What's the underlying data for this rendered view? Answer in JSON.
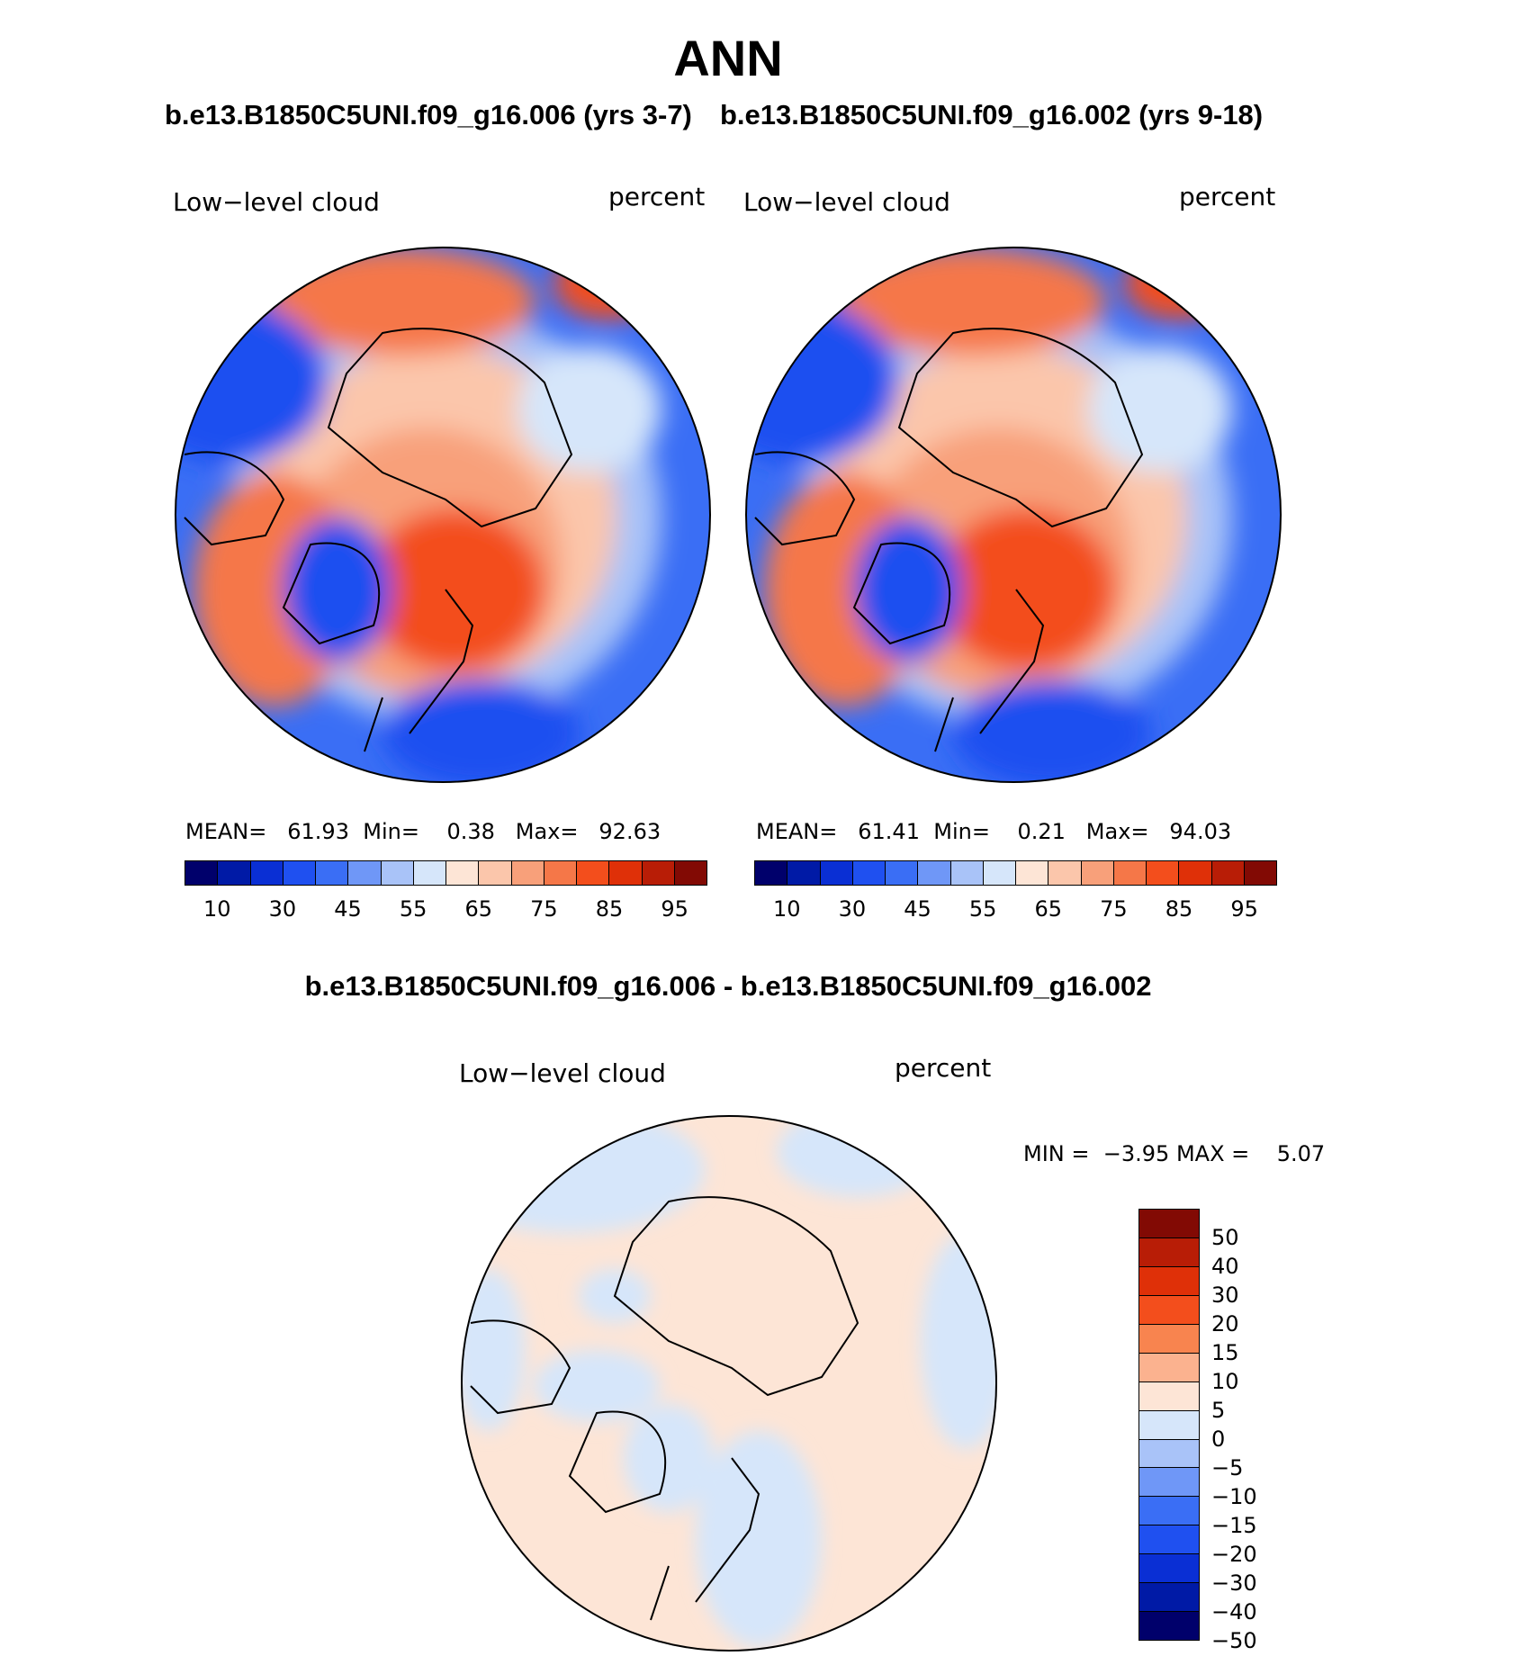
{
  "title": "ANN",
  "subtitle_left": "b.e13.B1850C5UNI.f09_g16.006 (yrs 3-7)",
  "subtitle_right": "b.e13.B1850C5UNI.f09_g16.002 (yrs 9-18)",
  "diff_title": "b.e13.B1850C5UNI.f09_g16.006 - b.e13.B1850C5UNI.f09_g16.002",
  "panels": [
    {
      "variable": "Low−level cloud",
      "units": "percent",
      "mean_label": "MEAN=",
      "mean": "61.93",
      "min_label": "Min=",
      "min": "0.38",
      "max_label": "Max=",
      "max": "92.63"
    },
    {
      "variable": "Low−level cloud",
      "units": "percent",
      "mean_label": "MEAN=",
      "mean": "61.41",
      "min_label": "Min=",
      "min": "0.21",
      "max_label": "Max=",
      "max": "94.03"
    }
  ],
  "diff_panel": {
    "variable": "Low−level cloud",
    "units": "percent",
    "min_label": "MIN =",
    "min": "−3.95",
    "max_label": "MAX =",
    "max": "5.07"
  },
  "colorbar_main": {
    "colors": [
      "#00006b",
      "#001aa6",
      "#0a2fd4",
      "#1f50f0",
      "#3a6ef5",
      "#6f97f7",
      "#a9c3f8",
      "#d6e6fa",
      "#fde5d6",
      "#fbc6ab",
      "#f8a07a",
      "#f57748",
      "#f34e1c",
      "#df3008",
      "#b81d06",
      "#820a04"
    ],
    "labels": [
      "10",
      "30",
      "45",
      "55",
      "65",
      "75",
      "85",
      "95"
    ]
  },
  "colorbar_diff": {
    "colors": [
      "#820a04",
      "#b81d06",
      "#df3008",
      "#f34e1c",
      "#f8844f",
      "#fbb28f",
      "#fde5d6",
      "#d6e6fa",
      "#a9c3f8",
      "#6f97f7",
      "#3a6ef5",
      "#1f50f0",
      "#0a2fd4",
      "#001aa6",
      "#00006b"
    ],
    "labels": [
      "50",
      "40",
      "30",
      "20",
      "15",
      "10",
      "5",
      "0",
      "−5",
      "−10",
      "−15",
      "−20",
      "−30",
      "−40",
      "−50"
    ]
  }
}
